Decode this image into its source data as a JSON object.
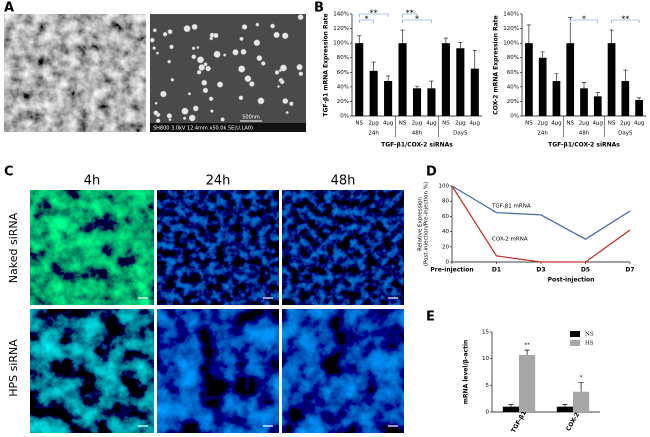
{
  "figure": {
    "panel_labels": [
      "A",
      "B",
      "C",
      "D",
      "E"
    ],
    "sem_info": "SH800 3.0kV 12.4mm x50.0k SE(U,LA0)",
    "scale_bar": "500nm",
    "column_labels": [
      "4h",
      "24h",
      "48h"
    ],
    "row_labels": [
      "Naked siRNA",
      "HPS siRNA"
    ]
  },
  "chart_data": [
    {
      "type": "bar",
      "ylabel": "TGF-β1 mRNA Expression Rate",
      "xlabel": "TGF-β1/COX-2 siRNAs",
      "categories": [
        "NS",
        "2µg",
        "4µg",
        "NS",
        "2µg",
        "4µg",
        "NS",
        "2µg",
        "4µg"
      ],
      "groups": [
        "24h",
        "48h",
        "Day5"
      ],
      "values": [
        100,
        62,
        48,
        100,
        38,
        38,
        100,
        93,
        65
      ],
      "errors": [
        10,
        12,
        7,
        18,
        3,
        10,
        7,
        8,
        25
      ],
      "color": "#000000",
      "annotations": [
        "*",
        "**",
        "**",
        "*"
      ],
      "ylim": [
        0,
        140
      ],
      "yticks": [
        {
          "value": 0,
          "label": "0%"
        },
        {
          "value": 20,
          "label": "20%"
        },
        {
          "value": 40,
          "label": "40%"
        },
        {
          "value": 60,
          "label": "60%"
        },
        {
          "value": 80,
          "label": "80%"
        },
        {
          "value": 100,
          "label": "100%"
        },
        {
          "value": 120,
          "label": "120%"
        },
        {
          "value": 140,
          "label": "140%"
        }
      ]
    },
    {
      "type": "bar",
      "ylabel": "COX-2 mRNA Expression Rate",
      "xlabel": "TGF-β1/COX-2 siRNAs",
      "categories": [
        "NS",
        "2µg",
        "4µg",
        "NS",
        "2µg",
        "4µg",
        "NS",
        "2µg",
        "4µg"
      ],
      "groups": [
        "24h",
        "48h",
        "Day5"
      ],
      "values": [
        100,
        80,
        48,
        100,
        38,
        27,
        100,
        48,
        22
      ],
      "errors": [
        25,
        8,
        10,
        35,
        8,
        5,
        18,
        15,
        3
      ],
      "color": "#000000",
      "annotations": [
        "*",
        "**"
      ],
      "ylim": [
        0,
        140
      ],
      "yticks": [
        {
          "value": 0,
          "label": "0%"
        },
        {
          "value": 20,
          "label": "20%"
        },
        {
          "value": 40,
          "label": "40%"
        },
        {
          "value": 60,
          "label": "60%"
        },
        {
          "value": 80,
          "label": "80%"
        },
        {
          "value": 100,
          "label": "100%"
        },
        {
          "value": 120,
          "label": "120%"
        },
        {
          "value": 140,
          "label": "140%"
        }
      ]
    },
    {
      "type": "line",
      "ylabel": [
        "Relative Expression",
        "(Post-injection/Pre-injection %)"
      ],
      "xlabel": "Post-injection",
      "categories": [
        "Pre-injection",
        "D1",
        "D3",
        "D5",
        "D7"
      ],
      "series": [
        {
          "name": "TGF-β1 mRNA",
          "color": "#4a6fa5",
          "values": [
            100,
            65,
            62,
            30,
            67
          ]
        },
        {
          "name": "COX-2 mRNA",
          "color": "#c0392b",
          "values": [
            100,
            8,
            0,
            0,
            42
          ]
        }
      ],
      "ylim": [
        0,
        100
      ],
      "yticks": [
        0,
        20,
        40,
        60,
        80,
        100
      ]
    },
    {
      "type": "grouped_bar",
      "ylabel": "mRNA level/β-actin",
      "categories": [
        "TGF-β1",
        "COX-2"
      ],
      "series": [
        {
          "name": "NS",
          "color": "#000000",
          "values": [
            1,
            1
          ],
          "errors": [
            0.4,
            0.4
          ]
        },
        {
          "name": "HS",
          "color": "#a6a6a6",
          "values": [
            10.7,
            3.8
          ],
          "errors": [
            0.9,
            1.7
          ]
        }
      ],
      "annotations": [
        "**",
        "*"
      ],
      "legend": "upper right",
      "ylim": [
        0,
        15
      ],
      "yticks": [
        0,
        5,
        10,
        15
      ]
    }
  ]
}
